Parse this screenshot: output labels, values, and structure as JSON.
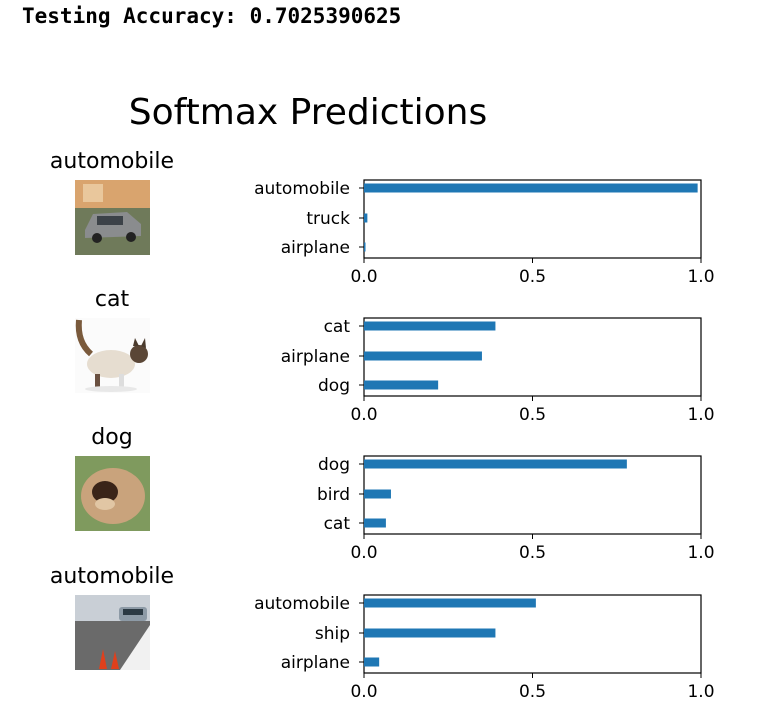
{
  "output": {
    "accuracy_label": "Testing Accuracy:",
    "accuracy_value": "0.7025390625"
  },
  "figure": {
    "title": "Softmax Predictions",
    "bar_color": "#1f77b4"
  },
  "chart_data": [
    {
      "type": "bar",
      "orientation": "horizontal",
      "image_label": "automobile",
      "categories": [
        "automobile",
        "truck",
        "airplane"
      ],
      "values": [
        0.99,
        0.01,
        0.002
      ],
      "xlim": [
        0.0,
        1.0
      ],
      "xticks": [
        "0.0",
        "0.5",
        "1.0"
      ]
    },
    {
      "type": "bar",
      "orientation": "horizontal",
      "image_label": "cat",
      "categories": [
        "cat",
        "airplane",
        "dog"
      ],
      "values": [
        0.39,
        0.35,
        0.22
      ],
      "xlim": [
        0.0,
        1.0
      ],
      "xticks": [
        "0.0",
        "0.5",
        "1.0"
      ]
    },
    {
      "type": "bar",
      "orientation": "horizontal",
      "image_label": "dog",
      "categories": [
        "dog",
        "bird",
        "cat"
      ],
      "values": [
        0.78,
        0.08,
        0.065
      ],
      "xlim": [
        0.0,
        1.0
      ],
      "xticks": [
        "0.0",
        "0.5",
        "1.0"
      ]
    },
    {
      "type": "bar",
      "orientation": "horizontal",
      "image_label": "automobile",
      "categories": [
        "automobile",
        "ship",
        "airplane"
      ],
      "values": [
        0.51,
        0.39,
        0.045
      ],
      "xlim": [
        0.0,
        1.0
      ],
      "xticks": [
        "0.0",
        "0.5",
        "1.0"
      ]
    }
  ]
}
